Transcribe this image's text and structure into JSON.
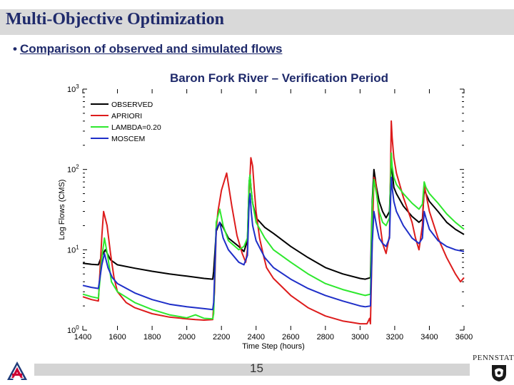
{
  "slide": {
    "title": "Multi-Objective Optimization",
    "bullet_marker": "•",
    "bullet": "Comparison of observed and simulated flows",
    "page_number": "15",
    "penn_state_label": "PENNSTATE"
  },
  "chart_data": {
    "type": "line",
    "title": "Baron Fork River – Verification Period",
    "xlabel": "Time Step (hours)",
    "ylabel": "Log Flows (CMS)",
    "x_scale": "linear",
    "y_scale": "log",
    "xlim": [
      1400,
      3600
    ],
    "ylim": [
      1,
      1000
    ],
    "x_ticks": [
      "1400",
      "1600",
      "1800",
      "2000",
      "2200",
      "2400",
      "2600",
      "2800",
      "3000",
      "3200",
      "3400",
      "3600"
    ],
    "y_ticks": [
      {
        "base": "10",
        "exp": "0",
        "value": 1
      },
      {
        "base": "10",
        "exp": "1",
        "value": 10
      },
      {
        "base": "10",
        "exp": "2",
        "value": 100
      },
      {
        "base": "10",
        "exp": "3",
        "value": 1000
      }
    ],
    "legend_position": "top-left",
    "series": [
      {
        "name": "OBSERVED",
        "color": "#000000",
        "x": [
          1400,
          1450,
          1490,
          1510,
          1530,
          1560,
          1600,
          1700,
          1800,
          1900,
          2000,
          2100,
          2150,
          2155,
          2170,
          2190,
          2210,
          2240,
          2300,
          2330,
          2350,
          2360,
          2365,
          2372,
          2380,
          2400,
          2450,
          2500,
          2600,
          2700,
          2800,
          2900,
          3000,
          3030,
          3060,
          3070,
          3080,
          3095,
          3110,
          3130,
          3150,
          3170,
          3180,
          3185,
          3195,
          3210,
          3250,
          3300,
          3340,
          3360,
          3370,
          3380,
          3400,
          3450,
          3500,
          3550,
          3600
        ],
        "y": [
          6.8,
          6.6,
          6.5,
          8.5,
          10.0,
          7.5,
          6.5,
          5.9,
          5.4,
          5.0,
          4.7,
          4.4,
          4.3,
          5.4,
          17.0,
          22.0,
          19.0,
          14.0,
          11.0,
          9.5,
          13.0,
          70.0,
          85.0,
          55.0,
          38.0,
          25.0,
          19.0,
          16.0,
          11.0,
          8.0,
          6.0,
          5.0,
          4.4,
          4.3,
          4.5,
          40.0,
          100.0,
          60.0,
          40.0,
          30.0,
          25.0,
          30.0,
          130.0,
          95.0,
          60.0,
          50.0,
          35.0,
          26.0,
          22.0,
          24.0,
          55.0,
          50.0,
          40.0,
          30.0,
          22.0,
          18.0,
          15.5
        ]
      },
      {
        "name": "APRIORI",
        "color": "#dd1c1c",
        "x": [
          1400,
          1450,
          1490,
          1510,
          1520,
          1540,
          1560,
          1580,
          1600,
          1650,
          1700,
          1800,
          1900,
          2000,
          2050,
          2100,
          2150,
          2160,
          2170,
          2180,
          2200,
          2230,
          2260,
          2290,
          2320,
          2340,
          2350,
          2360,
          2370,
          2380,
          2390,
          2400,
          2420,
          2440,
          2460,
          2500,
          2600,
          2700,
          2800,
          2900,
          2950,
          3000,
          3040,
          3055,
          3060,
          3070,
          3080,
          3090,
          3110,
          3130,
          3150,
          3170,
          3180,
          3185,
          3195,
          3210,
          3250,
          3300,
          3320,
          3340,
          3360,
          3370,
          3380,
          3400,
          3450,
          3500,
          3550,
          3580,
          3600
        ],
        "y": [
          2.6,
          2.4,
          2.3,
          15.0,
          30.0,
          20.0,
          9.0,
          4.5,
          3.0,
          2.2,
          1.9,
          1.6,
          1.45,
          1.38,
          1.35,
          1.33,
          1.35,
          3.0,
          18.0,
          30.0,
          55.0,
          90.0,
          35.0,
          15.0,
          9.0,
          7.0,
          10.0,
          50.0,
          140.0,
          110.0,
          55.0,
          30.0,
          14.0,
          9.0,
          6.0,
          4.4,
          2.7,
          1.9,
          1.5,
          1.3,
          1.25,
          1.2,
          1.2,
          1.4,
          1.2,
          12.0,
          80.0,
          70.0,
          25.0,
          12.0,
          9.0,
          15.0,
          400.0,
          250.0,
          140.0,
          90.0,
          45.0,
          22.0,
          14.0,
          10.0,
          20.0,
          65.0,
          50.0,
          30.0,
          14.0,
          8.0,
          5.0,
          4.0,
          4.5
        ]
      },
      {
        "name": "LAMBDA=0.20",
        "color": "#2ee82e",
        "x": [
          1400,
          1450,
          1490,
          1510,
          1525,
          1545,
          1565,
          1600,
          1700,
          1800,
          1900,
          2000,
          2050,
          2100,
          2150,
          2155,
          2170,
          2190,
          2210,
          2240,
          2300,
          2330,
          2350,
          2360,
          2365,
          2372,
          2380,
          2400,
          2450,
          2500,
          2600,
          2700,
          2800,
          2900,
          3000,
          3030,
          3060,
          3070,
          3080,
          3095,
          3110,
          3130,
          3150,
          3170,
          3180,
          3185,
          3195,
          3210,
          3250,
          3300,
          3340,
          3360,
          3370,
          3380,
          3400,
          3450,
          3500,
          3550,
          3600
        ],
        "y": [
          2.8,
          2.6,
          2.5,
          8.0,
          14.0,
          8.0,
          4.0,
          3.0,
          2.2,
          1.8,
          1.55,
          1.42,
          1.55,
          1.4,
          1.38,
          1.6,
          22.0,
          32.0,
          20.0,
          13.0,
          10.0,
          11.0,
          14.0,
          70.0,
          85.0,
          55.0,
          38.0,
          22.0,
          14.0,
          10.0,
          7.0,
          5.0,
          3.8,
          3.2,
          2.8,
          2.7,
          2.8,
          35.0,
          75.0,
          50.0,
          30.0,
          22.0,
          20.0,
          25.0,
          160.0,
          110.0,
          80.0,
          65.0,
          50.0,
          38.0,
          32.0,
          37.0,
          70.0,
          60.0,
          50.0,
          38.0,
          28.0,
          22.0,
          18.0
        ]
      },
      {
        "name": "MOSCEM",
        "color": "#1f2fc8",
        "x": [
          1400,
          1450,
          1490,
          1510,
          1525,
          1545,
          1570,
          1600,
          1700,
          1800,
          1900,
          2000,
          2100,
          2150,
          2155,
          2170,
          2190,
          2210,
          2240,
          2300,
          2330,
          2350,
          2360,
          2365,
          2372,
          2380,
          2400,
          2450,
          2500,
          2600,
          2700,
          2800,
          2900,
          3000,
          3030,
          3060,
          3070,
          3080,
          3095,
          3110,
          3130,
          3150,
          3170,
          3180,
          3185,
          3195,
          3210,
          3250,
          3300,
          3340,
          3360,
          3370,
          3380,
          3400,
          3450,
          3500,
          3550,
          3600
        ],
        "y": [
          3.6,
          3.4,
          3.3,
          6.5,
          9.0,
          6.0,
          4.5,
          3.8,
          2.9,
          2.4,
          2.1,
          1.95,
          1.85,
          1.8,
          2.2,
          18.0,
          22.0,
          14.0,
          10.0,
          7.0,
          6.5,
          8.5,
          40.0,
          50.0,
          30.0,
          20.0,
          13.0,
          8.0,
          6.0,
          4.3,
          3.3,
          2.7,
          2.3,
          2.0,
          1.95,
          2.0,
          12.0,
          30.0,
          20.0,
          14.0,
          12.0,
          11.0,
          14.0,
          80.0,
          60.0,
          40.0,
          30.0,
          20.0,
          14.0,
          12.0,
          14.0,
          30.0,
          25.0,
          18.0,
          13.0,
          11.0,
          10.0,
          9.5
        ]
      }
    ]
  }
}
